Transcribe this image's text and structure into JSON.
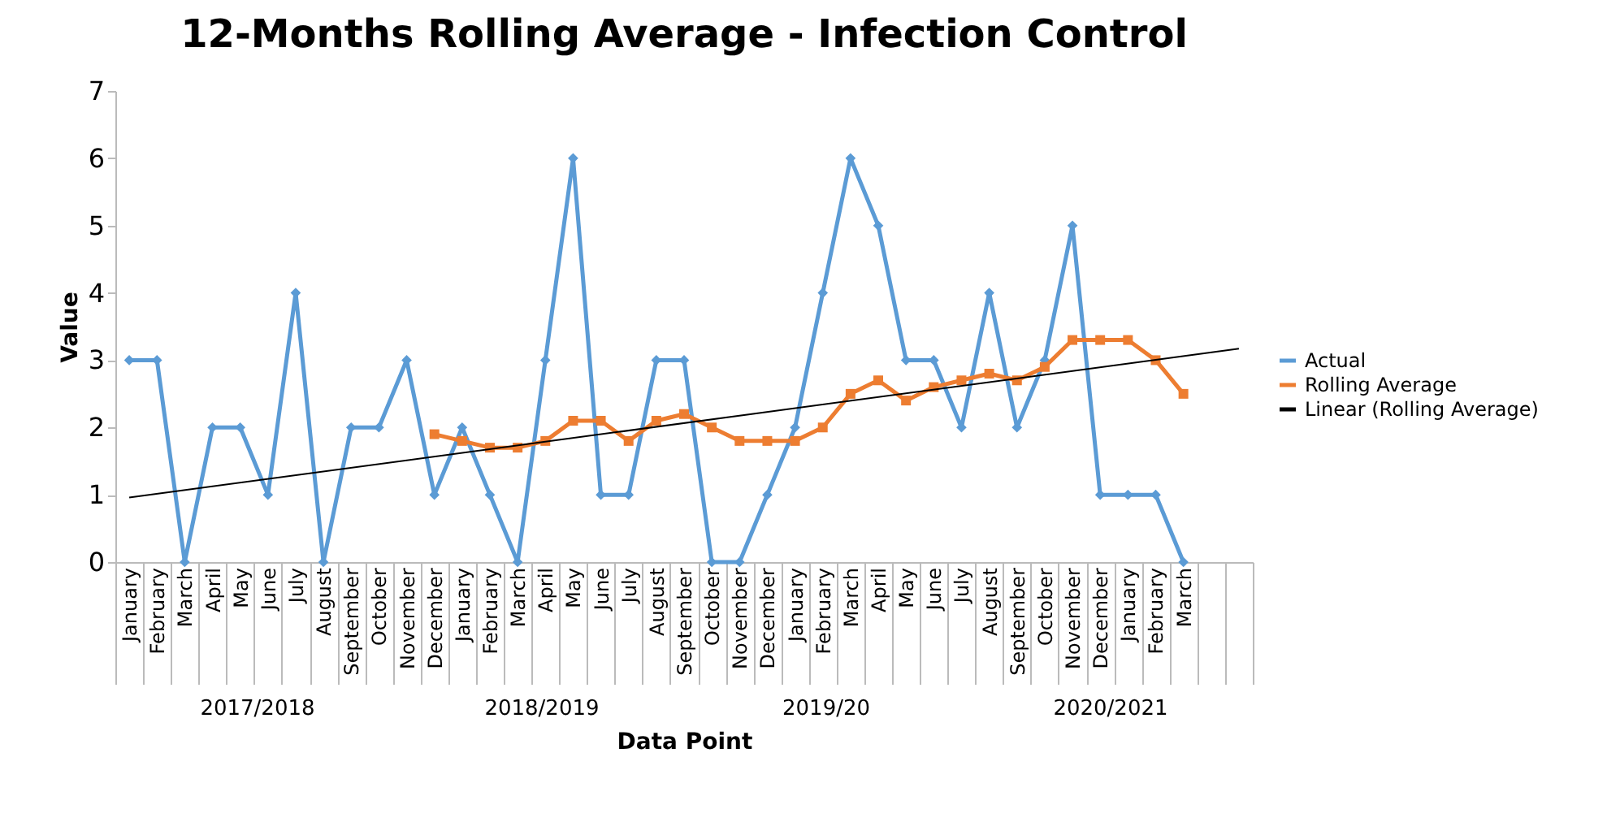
{
  "chart_data": {
    "type": "line",
    "title": "12-Months Rolling Average - Infection Control",
    "xlabel": "Data Point",
    "ylabel": "Value",
    "categories": [
      "January",
      "February",
      "March",
      "April",
      "May",
      "June",
      "July",
      "August",
      "September",
      "October",
      "November",
      "December",
      "January",
      "February",
      "March",
      "April",
      "May",
      "June",
      "July",
      "August",
      "September",
      "October",
      "November",
      "December",
      "January",
      "February",
      "March",
      "April",
      "May",
      "June",
      "July",
      "August",
      "September",
      "October",
      "November",
      "December",
      "January",
      "February",
      "March",
      null,
      null
    ],
    "series": [
      {
        "name": "Actual",
        "color": "#5b9bd5",
        "marker": "diamond",
        "values": [
          3,
          3,
          0,
          2,
          2,
          1,
          4,
          0,
          2,
          2,
          3,
          1,
          2,
          1,
          0,
          3,
          6,
          1,
          1,
          3,
          3,
          0,
          0,
          1,
          2,
          4,
          6,
          5,
          3,
          3,
          2,
          4,
          2,
          3,
          5,
          1,
          1,
          1,
          0,
          null,
          null
        ]
      },
      {
        "name": "Rolling Average",
        "color": "#ed7d31",
        "marker": "square",
        "values": [
          null,
          null,
          null,
          null,
          null,
          null,
          null,
          null,
          null,
          null,
          null,
          1.9,
          1.8,
          1.7,
          1.7,
          1.8,
          2.1,
          2.1,
          1.8,
          2.1,
          2.2,
          2.0,
          1.8,
          1.8,
          1.8,
          2.0,
          2.5,
          2.7,
          2.4,
          2.6,
          2.7,
          2.8,
          2.7,
          2.9,
          3.3,
          3.3,
          3.3,
          3.0,
          2.5,
          null,
          null
        ]
      },
      {
        "name": "Linear (Rolling Average)",
        "color": "#000000",
        "marker": "none",
        "values": [
          0.96,
          null,
          null,
          null,
          null,
          null,
          null,
          null,
          null,
          null,
          null,
          null,
          null,
          null,
          null,
          null,
          null,
          null,
          null,
          null,
          null,
          null,
          null,
          null,
          null,
          null,
          null,
          null,
          null,
          null,
          null,
          null,
          null,
          null,
          null,
          null,
          null,
          null,
          null,
          null,
          3.17
        ]
      }
    ],
    "ylim": [
      0,
      7
    ],
    "yticks": [
      0,
      1,
      2,
      3,
      4,
      5,
      6,
      7
    ],
    "legend": "right",
    "annotations": [
      "2017/2018",
      "2018/2019",
      "2019/20",
      "2020/2021"
    ]
  }
}
